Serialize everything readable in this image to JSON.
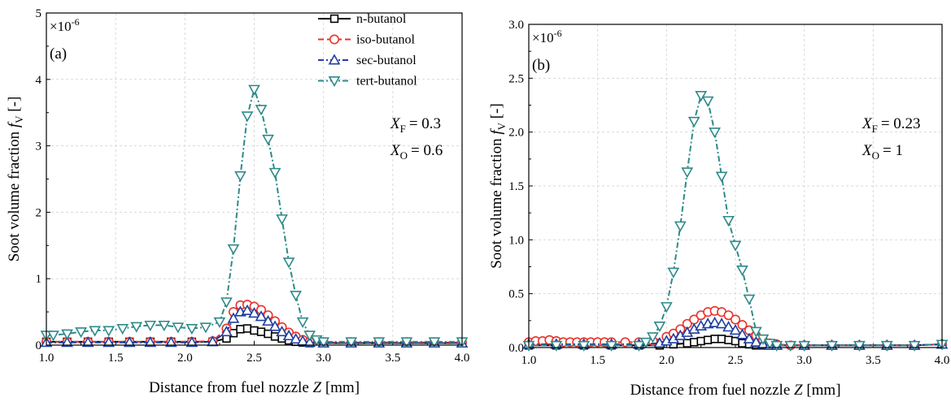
{
  "chart_data": [
    {
      "type": "line",
      "panel_label": "(a)",
      "scale_label": "×10",
      "scale_exp": "-6",
      "xlabel": "Distance from fuel nozzle Z [mm]",
      "ylabel": "Soot volume fraction f_V [-]",
      "xlim": [
        1.0,
        4.0
      ],
      "ylim": [
        0,
        5
      ],
      "xticks": [
        "1.0",
        "1.5",
        "2.0",
        "2.5",
        "3.0",
        "3.5",
        "4.0"
      ],
      "yticks": [
        "0",
        "1",
        "2",
        "3",
        "4",
        "5"
      ],
      "grid": true,
      "legend_position": "top-right",
      "annotations": [
        {
          "var": "X",
          "sub": "F",
          "value": "= 0.3"
        },
        {
          "var": "X",
          "sub": "O",
          "value": "= 0.6"
        }
      ],
      "series": [
        {
          "name": "n-butanol",
          "color": "#000000",
          "marker": "square",
          "dash": "solid",
          "x": [
            1.0,
            1.15,
            1.3,
            1.45,
            1.6,
            1.75,
            1.9,
            2.05,
            2.2,
            2.3,
            2.35,
            2.4,
            2.45,
            2.5,
            2.55,
            2.6,
            2.65,
            2.7,
            2.75,
            2.8,
            2.85,
            2.9,
            3.0,
            3.2,
            3.4,
            3.6,
            3.8,
            4.0
          ],
          "y": [
            0.05,
            0.05,
            0.05,
            0.05,
            0.05,
            0.05,
            0.05,
            0.05,
            0.05,
            0.1,
            0.18,
            0.24,
            0.25,
            0.22,
            0.2,
            0.17,
            0.13,
            0.1,
            0.07,
            0.05,
            0.04,
            0.03,
            0.03,
            0.03,
            0.03,
            0.03,
            0.03,
            0.03
          ]
        },
        {
          "name": "iso-butanol",
          "color": "#e8322a",
          "marker": "circle",
          "dash": "dash",
          "x": [
            1.0,
            1.15,
            1.3,
            1.45,
            1.6,
            1.75,
            1.9,
            2.05,
            2.2,
            2.3,
            2.35,
            2.4,
            2.45,
            2.5,
            2.55,
            2.6,
            2.65,
            2.7,
            2.75,
            2.8,
            2.85,
            2.9,
            3.0,
            3.2,
            3.4,
            3.6,
            3.8,
            4.0
          ],
          "y": [
            0.05,
            0.05,
            0.05,
            0.05,
            0.05,
            0.05,
            0.05,
            0.05,
            0.06,
            0.25,
            0.5,
            0.6,
            0.61,
            0.58,
            0.53,
            0.45,
            0.36,
            0.27,
            0.19,
            0.13,
            0.08,
            0.05,
            0.04,
            0.04,
            0.04,
            0.04,
            0.04,
            0.04
          ]
        },
        {
          "name": "sec-butanol",
          "color": "#1f3fa0",
          "marker": "triangle-up",
          "dash": "dashdot",
          "x": [
            1.0,
            1.15,
            1.3,
            1.45,
            1.6,
            1.75,
            1.9,
            2.05,
            2.2,
            2.3,
            2.35,
            2.4,
            2.45,
            2.5,
            2.55,
            2.6,
            2.65,
            2.7,
            2.75,
            2.8,
            2.85,
            2.9,
            3.0,
            3.2,
            3.4,
            3.6,
            3.8,
            4.0
          ],
          "y": [
            0.04,
            0.04,
            0.04,
            0.04,
            0.04,
            0.04,
            0.04,
            0.04,
            0.05,
            0.2,
            0.4,
            0.5,
            0.52,
            0.48,
            0.43,
            0.36,
            0.28,
            0.2,
            0.14,
            0.09,
            0.06,
            0.04,
            0.03,
            0.03,
            0.03,
            0.03,
            0.03,
            0.03
          ]
        },
        {
          "name": "tert-butanol",
          "color": "#2e8a88",
          "marker": "triangle-down",
          "dash": "dashdot",
          "x": [
            1.0,
            1.05,
            1.15,
            1.25,
            1.35,
            1.45,
            1.55,
            1.65,
            1.75,
            1.85,
            1.95,
            2.05,
            2.15,
            2.25,
            2.3,
            2.35,
            2.4,
            2.45,
            2.5,
            2.55,
            2.6,
            2.65,
            2.7,
            2.75,
            2.8,
            2.85,
            2.9,
            2.95,
            3.0,
            3.2,
            3.4,
            3.6,
            3.8,
            4.0
          ],
          "y": [
            0.15,
            0.15,
            0.17,
            0.2,
            0.22,
            0.22,
            0.25,
            0.28,
            0.3,
            0.3,
            0.27,
            0.25,
            0.27,
            0.35,
            0.65,
            1.45,
            2.55,
            3.45,
            3.85,
            3.55,
            3.1,
            2.6,
            1.9,
            1.25,
            0.75,
            0.35,
            0.15,
            0.08,
            0.05,
            0.05,
            0.05,
            0.05,
            0.05,
            0.05
          ]
        }
      ]
    },
    {
      "type": "line",
      "panel_label": "(b)",
      "scale_label": "×10",
      "scale_exp": "-6",
      "xlabel": "Distance from fuel nozzle Z [mm]",
      "ylabel": "Soot volume fraction f_V [-]",
      "xlim": [
        1.0,
        4.0
      ],
      "ylim": [
        0,
        3.0
      ],
      "xticks": [
        "1.0",
        "1.5",
        "2.0",
        "2.5",
        "3.0",
        "3.5",
        "4.0"
      ],
      "yticks": [
        "0.0",
        "0.5",
        "1.0",
        "1.5",
        "2.0",
        "2.5",
        "3.0"
      ],
      "grid": true,
      "annotations": [
        {
          "var": "X",
          "sub": "F",
          "value": "= 0.23"
        },
        {
          "var": "X",
          "sub": "O",
          "value": "= 1"
        }
      ],
      "series": [
        {
          "name": "n-butanol",
          "color": "#000000",
          "marker": "square",
          "dash": "solid",
          "x": [
            1.0,
            1.2,
            1.4,
            1.6,
            1.8,
            1.95,
            2.05,
            2.15,
            2.2,
            2.25,
            2.3,
            2.35,
            2.4,
            2.45,
            2.5,
            2.55,
            2.6,
            2.65,
            2.7,
            2.75,
            2.8,
            3.0,
            3.2,
            3.4,
            3.6,
            3.8,
            4.0
          ],
          "y": [
            0.02,
            0.02,
            0.02,
            0.02,
            0.02,
            0.02,
            0.03,
            0.04,
            0.05,
            0.06,
            0.07,
            0.08,
            0.08,
            0.07,
            0.06,
            0.04,
            0.03,
            0.02,
            0.02,
            0.02,
            0.02,
            0.02,
            0.02,
            0.02,
            0.02,
            0.02,
            0.03
          ]
        },
        {
          "name": "iso-butanol",
          "color": "#e8322a",
          "marker": "circle",
          "dash": "dash",
          "x": [
            1.0,
            1.05,
            1.1,
            1.15,
            1.2,
            1.25,
            1.3,
            1.35,
            1.4,
            1.45,
            1.5,
            1.55,
            1.6,
            1.7,
            1.8,
            1.9,
            2.0,
            2.05,
            2.1,
            2.15,
            2.2,
            2.25,
            2.3,
            2.35,
            2.4,
            2.45,
            2.5,
            2.55,
            2.6,
            2.65,
            2.7,
            2.75,
            2.8,
            2.9,
            3.0,
            3.2,
            3.4,
            3.6,
            3.8,
            4.0
          ],
          "y": [
            0.05,
            0.06,
            0.06,
            0.07,
            0.06,
            0.05,
            0.05,
            0.05,
            0.05,
            0.05,
            0.05,
            0.05,
            0.05,
            0.05,
            0.05,
            0.06,
            0.1,
            0.13,
            0.17,
            0.22,
            0.26,
            0.3,
            0.33,
            0.34,
            0.33,
            0.3,
            0.26,
            0.21,
            0.16,
            0.11,
            0.07,
            0.04,
            0.03,
            0.02,
            0.02,
            0.02,
            0.02,
            0.02,
            0.02,
            0.03
          ]
        },
        {
          "name": "sec-butanol",
          "color": "#1f3fa0",
          "marker": "triangle-up",
          "dash": "dashdot",
          "x": [
            1.0,
            1.2,
            1.4,
            1.6,
            1.8,
            1.95,
            2.0,
            2.05,
            2.1,
            2.15,
            2.2,
            2.25,
            2.3,
            2.35,
            2.4,
            2.45,
            2.5,
            2.55,
            2.6,
            2.65,
            2.7,
            2.75,
            2.8,
            3.0,
            3.2,
            3.4,
            3.6,
            3.8,
            4.0
          ],
          "y": [
            0.03,
            0.03,
            0.03,
            0.03,
            0.03,
            0.04,
            0.06,
            0.08,
            0.11,
            0.14,
            0.17,
            0.2,
            0.22,
            0.23,
            0.22,
            0.19,
            0.16,
            0.12,
            0.08,
            0.05,
            0.03,
            0.02,
            0.02,
            0.02,
            0.02,
            0.02,
            0.02,
            0.02,
            0.03
          ]
        },
        {
          "name": "tert-butanol",
          "color": "#2e8a88",
          "marker": "triangle-down",
          "dash": "dashdot",
          "x": [
            1.0,
            1.2,
            1.4,
            1.6,
            1.8,
            1.85,
            1.9,
            1.95,
            2.0,
            2.05,
            2.1,
            2.15,
            2.2,
            2.25,
            2.3,
            2.35,
            2.4,
            2.45,
            2.5,
            2.55,
            2.6,
            2.65,
            2.7,
            2.75,
            2.8,
            2.9,
            3.0,
            3.2,
            3.4,
            3.6,
            3.8,
            4.0
          ],
          "y": [
            0.02,
            0.02,
            0.02,
            0.02,
            0.02,
            0.05,
            0.1,
            0.2,
            0.38,
            0.7,
            1.13,
            1.63,
            2.1,
            2.34,
            2.29,
            2.0,
            1.59,
            1.18,
            0.95,
            0.72,
            0.45,
            0.15,
            0.08,
            0.04,
            0.02,
            0.02,
            0.02,
            0.02,
            0.02,
            0.02,
            0.02,
            0.03
          ]
        }
      ]
    }
  ]
}
